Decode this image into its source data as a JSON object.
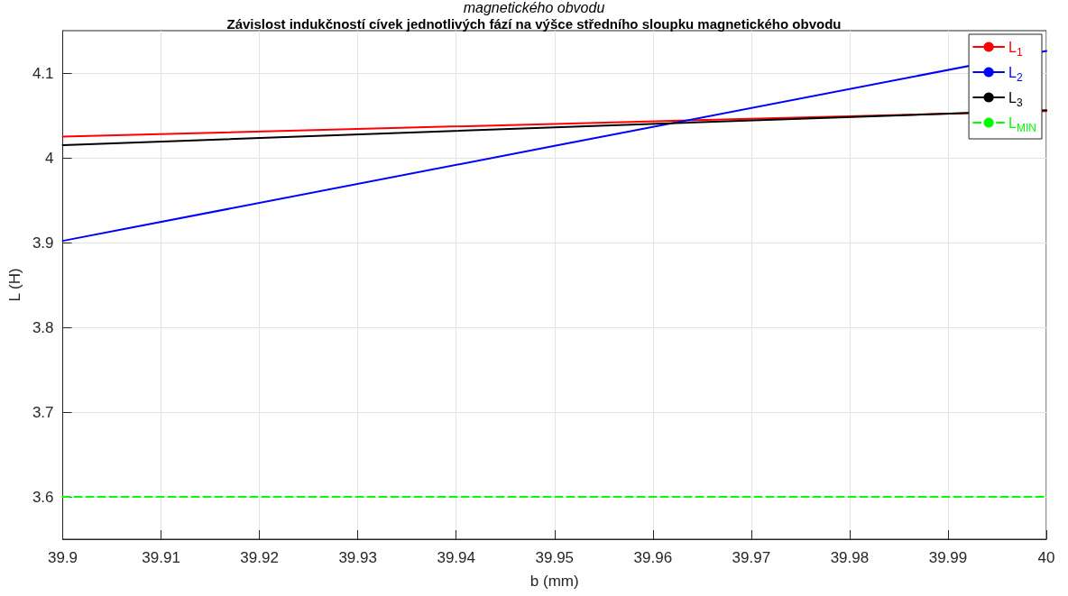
{
  "chart_data": {
    "type": "line",
    "title": "Závislost indukčností cívek jednotlivých fází na výšce středního sloupku magnetického obvodu",
    "annotations": [
      "magnetického obvodu"
    ],
    "xlabel": "b (mm)",
    "ylabel": "L (H)",
    "x": [
      39.9,
      39.95,
      40
    ],
    "series": [
      {
        "name": "L$_{1}$",
        "color": "#ff0000",
        "values": [
          4.025,
          4.04,
          4.055
        ]
      },
      {
        "name": "L$_{2}$",
        "color": "#0000ff",
        "values": [
          3.902,
          4.014,
          4.126
        ]
      },
      {
        "name": "L$_{3}$",
        "color": "#000000",
        "values": [
          4.015,
          4.036,
          4.056
        ]
      },
      {
        "name": "L$_{MIN}$",
        "color": "#00ff00",
        "values": [
          3.6,
          3.6,
          3.6
        ],
        "line_style": "dashed"
      }
    ],
    "xlim": [
      39.9,
      40
    ],
    "xticks": [
      39.9,
      39.91,
      39.92,
      39.93,
      39.94,
      39.95,
      39.96,
      39.97,
      39.98,
      39.99,
      40
    ],
    "ylim": [
      3.55,
      4.15
    ],
    "yticks": [
      3.6,
      3.7,
      3.8,
      3.9,
      4,
      4.1
    ],
    "grid": true,
    "legend": "top right",
    "marker": "none",
    "line_style": "solid"
  }
}
